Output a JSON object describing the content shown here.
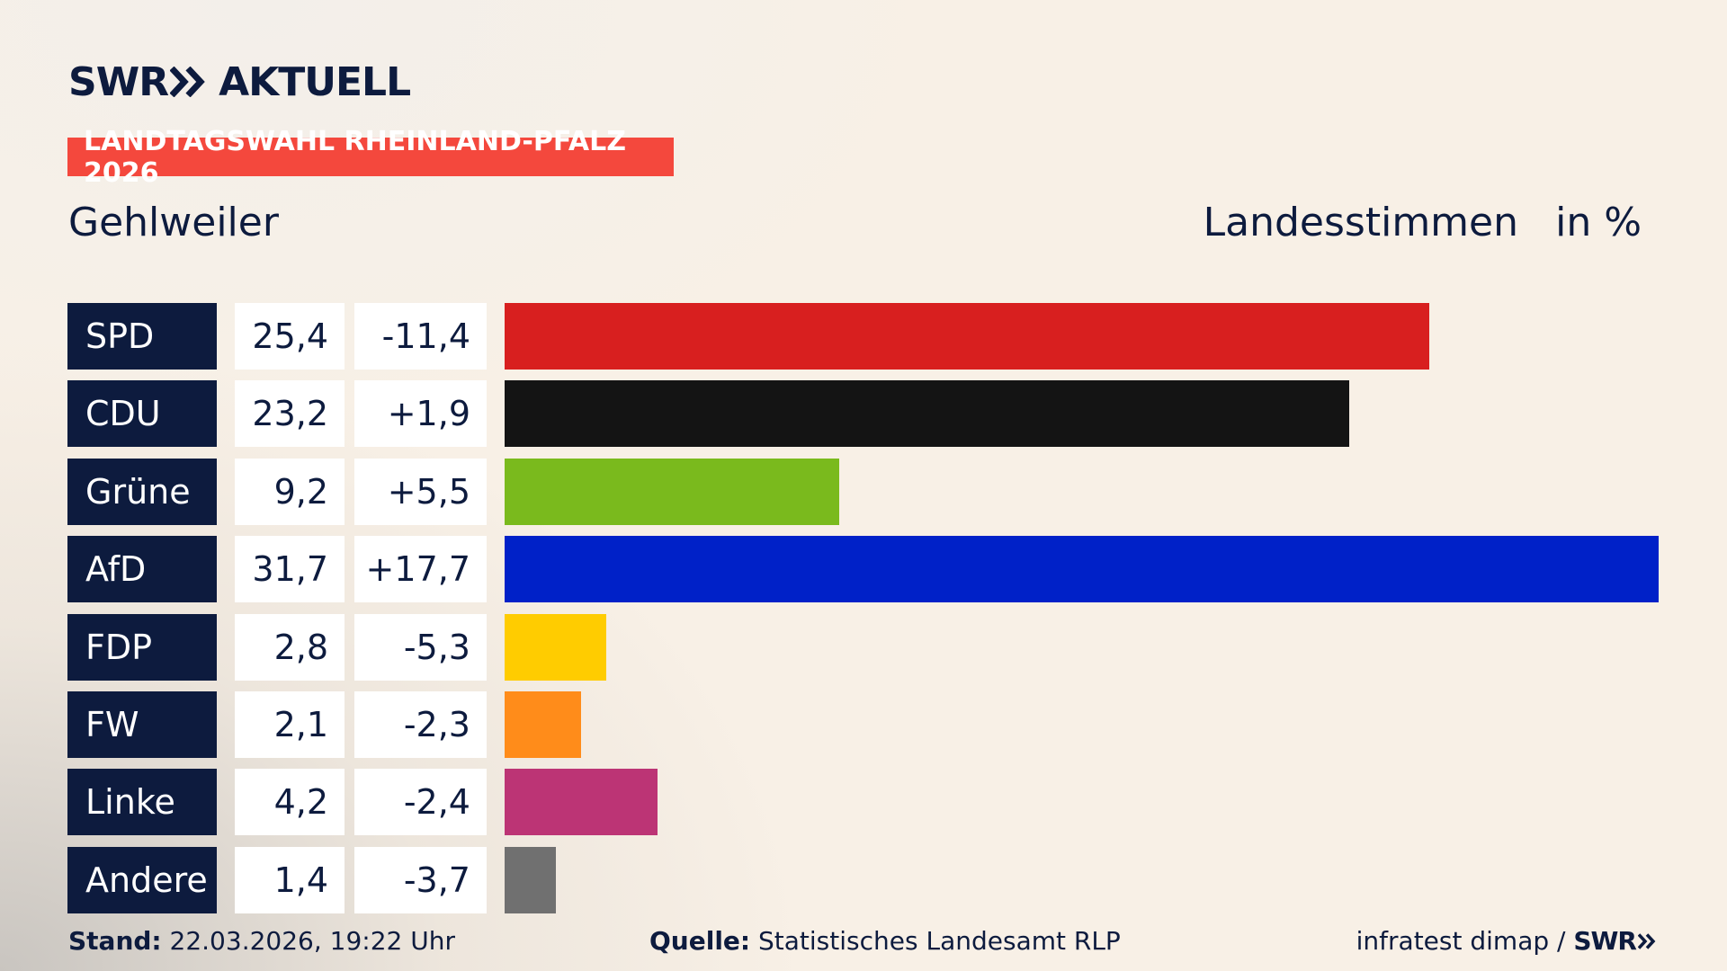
{
  "brand": {
    "name": "SWR",
    "product": "AKTUELL"
  },
  "tag": "LANDTAGSWAHL RHEINLAND-PFALZ 2026",
  "footer": {
    "stand_label": "Stand:",
    "stand": "22.03.2026, 19:22 Uhr",
    "source_label": "Quelle:",
    "source": "Statistisches Landesamt RLP",
    "credit": "infratest dimap /",
    "credit_brand": "SWR"
  },
  "chart_data": {
    "type": "bar",
    "orientation": "horizontal",
    "title": "Gehlweiler",
    "subtitle": "Landesstimmen",
    "unit": "in %",
    "categories": [
      "SPD",
      "CDU",
      "Grüne",
      "AfD",
      "FDP",
      "FW",
      "Linke",
      "Andere"
    ],
    "values": [
      25.4,
      23.2,
      9.2,
      31.7,
      2.8,
      2.1,
      4.2,
      1.4
    ],
    "value_labels": [
      "25,4",
      "23,2",
      "9,2",
      "31,7",
      "2,8",
      "2,1",
      "4,2",
      "1,4"
    ],
    "changes": [
      "-11,4",
      "+1,9",
      "+5,5",
      "+17,7",
      "-5,3",
      "-2,3",
      "-2,4",
      "-3,7"
    ],
    "colors": [
      "#d81f1f",
      "#141414",
      "#7aba1d",
      "#0021c8",
      "#ffcc00",
      "#ff8c1a",
      "#bc3475",
      "#707070"
    ]
  }
}
